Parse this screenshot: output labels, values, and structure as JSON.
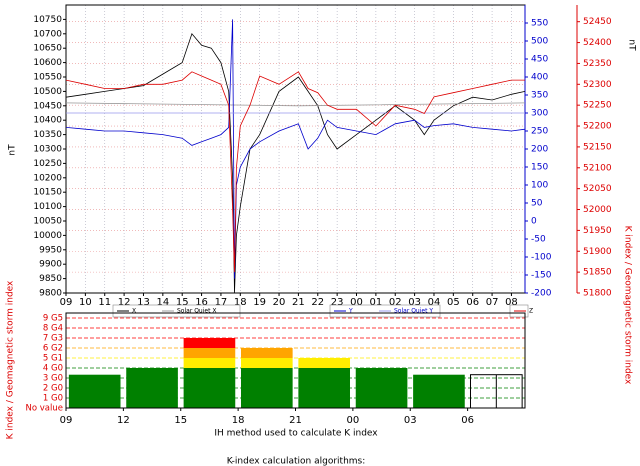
{
  "chart_data": [
    {
      "type": "line",
      "x": [
        0,
        1,
        2,
        3,
        4,
        5,
        6,
        6.5,
        7,
        7.5,
        8,
        8.4,
        8.6,
        8.7,
        8.8,
        9,
        9.5,
        10,
        11,
        12,
        12.5,
        13,
        13.5,
        14,
        15,
        16,
        17,
        18,
        18.5,
        19,
        20,
        21,
        22,
        23,
        23.7
      ],
      "xlim": [
        0,
        23.7
      ],
      "xticks": [
        {
          "value": 0,
          "label": "09"
        },
        {
          "value": 1,
          "label": "10"
        },
        {
          "value": 2,
          "label": "11"
        },
        {
          "value": 3,
          "label": "12"
        },
        {
          "value": 4,
          "label": "13"
        },
        {
          "value": 5,
          "label": "14"
        },
        {
          "value": 6,
          "label": "15"
        },
        {
          "value": 7,
          "label": "16"
        },
        {
          "value": 8,
          "label": "17"
        },
        {
          "value": 9,
          "label": "18"
        },
        {
          "value": 10,
          "label": "19"
        },
        {
          "value": 11,
          "label": "20"
        },
        {
          "value": 12,
          "label": "21"
        },
        {
          "value": 13,
          "label": "22"
        },
        {
          "value": 14,
          "label": "23"
        },
        {
          "value": 15,
          "label": "00"
        },
        {
          "value": 16,
          "label": "01"
        },
        {
          "value": 17,
          "label": "02"
        },
        {
          "value": 18,
          "label": "03"
        },
        {
          "value": 19,
          "label": "04"
        },
        {
          "value": 20,
          "label": "05"
        },
        {
          "value": 21,
          "label": "06"
        },
        {
          "value": 22,
          "label": "07"
        },
        {
          "value": 23,
          "label": "08"
        }
      ],
      "ylabel": "nT",
      "ylim": [
        9800,
        10800
      ],
      "yticks": [
        9800,
        9850,
        9900,
        9950,
        10000,
        10050,
        10100,
        10150,
        10200,
        10250,
        10300,
        10350,
        10400,
        10450,
        10500,
        10550,
        10600,
        10650,
        10700,
        10750
      ],
      "y2lim": [
        -200,
        600
      ],
      "y2ticks": [
        -200,
        -150,
        -100,
        -50,
        0,
        50,
        100,
        150,
        200,
        250,
        300,
        350,
        400,
        450,
        500,
        550
      ],
      "y3label": "nT",
      "y3lim": [
        51800,
        52490
      ],
      "y3ticks": [
        51800,
        51850,
        51900,
        51950,
        52000,
        52050,
        52100,
        52150,
        52200,
        52250,
        52300,
        52350,
        52400,
        52450
      ],
      "grid": true,
      "series": [
        {
          "name": "X",
          "color": "#000000",
          "axis": "y",
          "values": [
            10480,
            10490,
            10500,
            10510,
            10520,
            10560,
            10600,
            10700,
            10660,
            10650,
            10600,
            10500,
            10200,
            9800,
            10000,
            10100,
            10300,
            10350,
            10500,
            10550,
            10500,
            10450,
            10350,
            10300,
            10350,
            10400,
            10450,
            10400,
            10350,
            10400,
            10450,
            10480,
            10470,
            10490,
            10500
          ]
        },
        {
          "name": "Solar Quiet X",
          "color": "#999999",
          "axis": "y",
          "x": [
            0,
            12,
            23.7
          ],
          "values": [
            10460,
            10450,
            10460
          ]
        },
        {
          "name": "Y",
          "color": "#0000cc",
          "axis": "y2",
          "values": [
            260,
            255,
            250,
            250,
            245,
            240,
            230,
            210,
            220,
            230,
            240,
            260,
            560,
            -160,
            100,
            150,
            200,
            220,
            250,
            270,
            200,
            230,
            280,
            260,
            250,
            240,
            270,
            280,
            260,
            265,
            270,
            260,
            255,
            250,
            255
          ]
        },
        {
          "name": "Solar Quiet Y",
          "color": "#9999ee",
          "axis": "y2",
          "x": [
            0,
            12,
            23.7
          ],
          "values": [
            300,
            300,
            300
          ]
        },
        {
          "name": "Z",
          "color": "#dd0000",
          "axis": "y3",
          "values": [
            52310,
            52300,
            52290,
            52290,
            52300,
            52300,
            52310,
            52330,
            52320,
            52310,
            52300,
            52250,
            52000,
            51850,
            52100,
            52200,
            52250,
            52320,
            52300,
            52330,
            52290,
            52280,
            52250,
            52240,
            52240,
            52200,
            52250,
            52240,
            52230,
            52270,
            52280,
            52290,
            52300,
            52310,
            52310
          ]
        }
      ]
    },
    {
      "type": "bar",
      "x": [
        0,
        3,
        6,
        9,
        12,
        15,
        18,
        21
      ],
      "values": [
        3.33,
        4,
        7,
        6,
        5,
        4,
        3.33,
        3.33
      ],
      "bar_styles": [
        "filled",
        "filled",
        "filled",
        "filled",
        "filled",
        "filled",
        "filled",
        "outline"
      ],
      "xlim": [
        0,
        24
      ],
      "xticks": [
        {
          "value": 0,
          "label": "09"
        },
        {
          "value": 3,
          "label": "12"
        },
        {
          "value": 6,
          "label": "15"
        },
        {
          "value": 9,
          "label": "18"
        },
        {
          "value": 12,
          "label": "21"
        },
        {
          "value": 15,
          "label": "00"
        },
        {
          "value": 18,
          "label": "03"
        },
        {
          "value": 21,
          "label": "06"
        }
      ],
      "ylim": [
        0,
        9.5
      ],
      "yticks": [
        {
          "value": 0,
          "label": "No value"
        },
        {
          "value": 1,
          "label": "1 G0"
        },
        {
          "value": 2,
          "label": "2 G0"
        },
        {
          "value": 3,
          "label": "3 G0"
        },
        {
          "value": 4,
          "label": "4 G0"
        },
        {
          "value": 5,
          "label": "5 G1"
        },
        {
          "value": 6,
          "label": "6 G2"
        },
        {
          "value": 7,
          "label": "7 G3"
        },
        {
          "value": 8,
          "label": "8 G4"
        },
        {
          "value": 9,
          "label": "9 G5"
        }
      ],
      "grid_colors": [
        "#008000",
        "#008000",
        "#008000",
        "#008000",
        "#008000",
        "#ffee00",
        "#ffa500",
        "#ff0000",
        "#ff0000",
        "#ff0000"
      ],
      "xlabel": "IH method used to calculate K index",
      "ylabel": "K index / Geomagnetic storm index",
      "y2label": "K index / Geomagnetic storm index"
    }
  ],
  "footer": "K-index calculation algorithms:"
}
